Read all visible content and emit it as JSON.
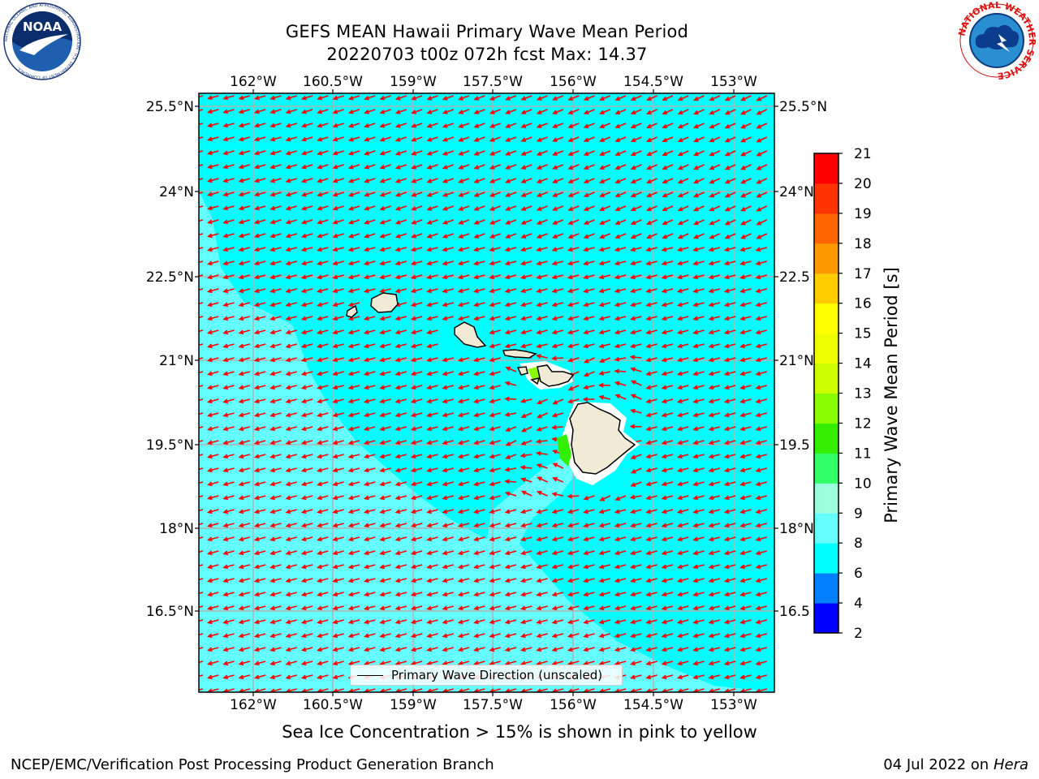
{
  "header": {
    "title_line1": "GEFS MEAN Hawaii Primary Wave Mean Period",
    "title_line2": "20220703 t00z 072h fcst   Max: 14.37"
  },
  "axes": {
    "lon_ticks": [
      "162°W",
      "160.5°W",
      "159°W",
      "157.5°W",
      "156°W",
      "154.5°W",
      "153°W"
    ],
    "lat_ticks": [
      "25.5°N",
      "24°N",
      "22.5°N",
      "21°N",
      "19.5°N",
      "18°N",
      "16.5°N"
    ],
    "lat_ticks_right": [
      "25.5°N",
      "24°N",
      "22.5",
      "21°N",
      "19.5",
      "18°N",
      "16.5"
    ]
  },
  "colorbar": {
    "title": "Primary Wave Mean Period [s]",
    "levels": [
      "2",
      "4",
      "6",
      "8",
      "9",
      "10",
      "11",
      "12",
      "13",
      "14",
      "15",
      "16",
      "17",
      "18",
      "19",
      "20",
      "21"
    ],
    "colors": [
      "#0000ff",
      "#0080ff",
      "#00ffff",
      "#66ffff",
      "#99ffdd",
      "#33ff66",
      "#33ee00",
      "#88ff00",
      "#ccff00",
      "#eeff00",
      "#ffff00",
      "#ffcc00",
      "#ff9900",
      "#ff6600",
      "#ff3300",
      "#ff0000"
    ]
  },
  "legend": {
    "label": "Primary Wave Direction (unscaled)"
  },
  "footer": {
    "note": "Sea Ice Concentration > 15% is shown in pink to yellow",
    "credit": "NCEP/EMC/Verification Post Processing Product Generation Branch",
    "date": "04 Jul 2022 on",
    "machine": "Hera"
  },
  "logos": {
    "left": "NOAA",
    "left_ring": "NATIONAL OCEANIC AND ATMOSPHERIC ADMINISTRATION · U.S. DEPARTMENT OF COMMERCE",
    "right_ring": "NATIONAL WEATHER SERVICE"
  },
  "map_colors": {
    "field_main": "#00ffff",
    "field_light": "#66ffff",
    "land": "#f0ead6",
    "arrow": "#ff0000",
    "grid": "#b0b0b0"
  }
}
